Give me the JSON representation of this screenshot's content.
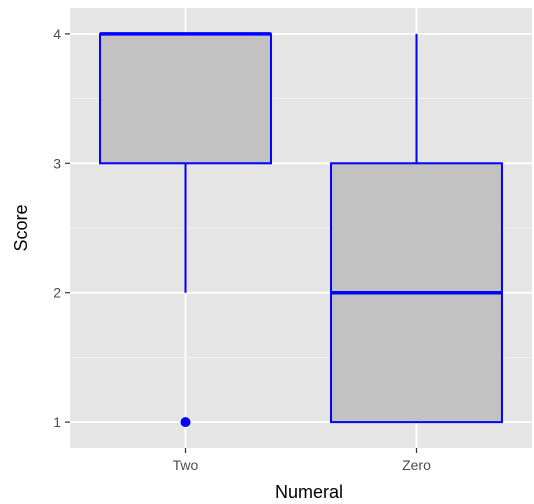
{
  "chart_data": {
    "type": "boxplot",
    "title": "",
    "xlabel": "Numeral",
    "ylabel": "Score",
    "categories": [
      "Two",
      "Zero"
    ],
    "ylim": [
      0.8,
      4.2
    ],
    "yticks": [
      1,
      2,
      3,
      4
    ],
    "grid": true,
    "boxes": [
      {
        "category": "Two",
        "lower_whisker": 2,
        "q1": 3,
        "median": 4,
        "q3": 4,
        "upper_whisker": 4,
        "outliers": [
          1
        ]
      },
      {
        "category": "Zero",
        "lower_whisker": 1,
        "q1": 1,
        "median": 2,
        "q3": 3,
        "upper_whisker": 4,
        "outliers": []
      }
    ],
    "colors": {
      "panel": "#e5e5e5",
      "grid": "#ffffff",
      "box_fill": "#c2c2c2",
      "box_stroke": "#0000ff",
      "outlier": "#0000ff"
    }
  }
}
